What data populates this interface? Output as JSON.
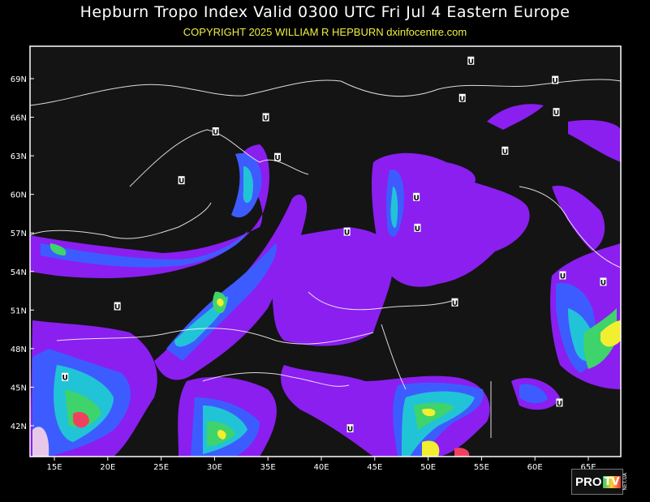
{
  "header": {
    "title": "Hepburn Tropo Index Valid 0300 UTC Fri Jul 4 Eastern Europe",
    "copyright": "COPYRIGHT 2025   WILLIAM R HEPBURN   dxinfocentre.com"
  },
  "map": {
    "lat_labels": [
      "69N",
      "66N",
      "63N",
      "60N",
      "57N",
      "54N",
      "51N",
      "48N",
      "45N",
      "42N"
    ],
    "lon_labels": [
      "15E",
      "20E",
      "25E",
      "30E",
      "35E",
      "40E",
      "45E",
      "50E",
      "55E",
      "60E",
      "65E"
    ],
    "colors": {
      "background": "#141414",
      "level1": "#8a1ff0",
      "level2": "#3d5cff",
      "level3": "#21c4d6",
      "level4": "#3fd36c",
      "level5": "#f2ee30",
      "level6": "#f04060",
      "land_lines": "#ffffff"
    },
    "marker_label": "U",
    "markers": [
      [
        54.0,
        70.4
      ],
      [
        61.9,
        68.9
      ],
      [
        53.2,
        67.5
      ],
      [
        62.0,
        66.4
      ],
      [
        30.1,
        64.9
      ],
      [
        34.8,
        66.0
      ],
      [
        57.2,
        63.4
      ],
      [
        35.9,
        62.9
      ],
      [
        26.9,
        61.1
      ],
      [
        48.9,
        59.8
      ],
      [
        42.4,
        57.1
      ],
      [
        49.0,
        57.4
      ],
      [
        62.6,
        53.7
      ],
      [
        66.4,
        53.2
      ],
      [
        20.9,
        51.3
      ],
      [
        52.5,
        51.6
      ],
      [
        16.0,
        45.8
      ],
      [
        62.3,
        43.8
      ],
      [
        42.7,
        41.8
      ]
    ]
  },
  "logo": {
    "text_pro": "PRO",
    "text_tv": "TV",
    "text_net": "NET.UA"
  }
}
